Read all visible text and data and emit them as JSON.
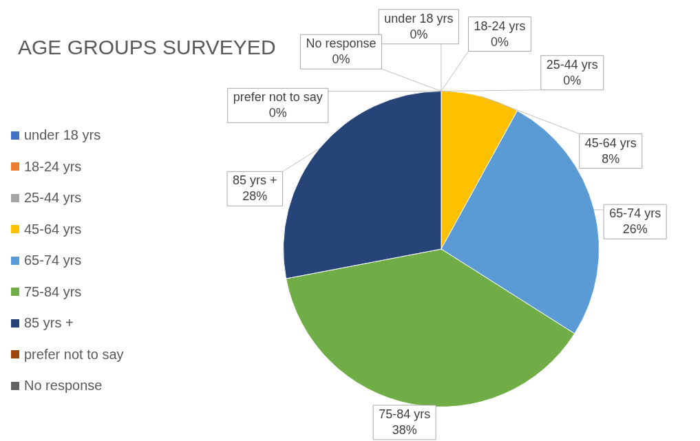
{
  "chart_data": {
    "type": "pie",
    "title": "AGE GROUPS SURVEYED",
    "categories": [
      "under 18 yrs",
      "18-24 yrs",
      "25-44 yrs",
      "45-64 yrs",
      "65-74 yrs",
      "75-84 yrs",
      "85 yrs +",
      "prefer not to say",
      "No response"
    ],
    "values": [
      0,
      0,
      0,
      8,
      26,
      38,
      28,
      0,
      0
    ],
    "colors": [
      "#4472c4",
      "#ed7d31",
      "#a5a5a5",
      "#ffc000",
      "#5b9bd5",
      "#70ad47",
      "#264478",
      "#9e480e",
      "#636363"
    ],
    "value_labels": [
      "0%",
      "0%",
      "0%",
      "8%",
      "26%",
      "38%",
      "28%",
      "0%",
      "0%"
    ],
    "legend": "left"
  }
}
